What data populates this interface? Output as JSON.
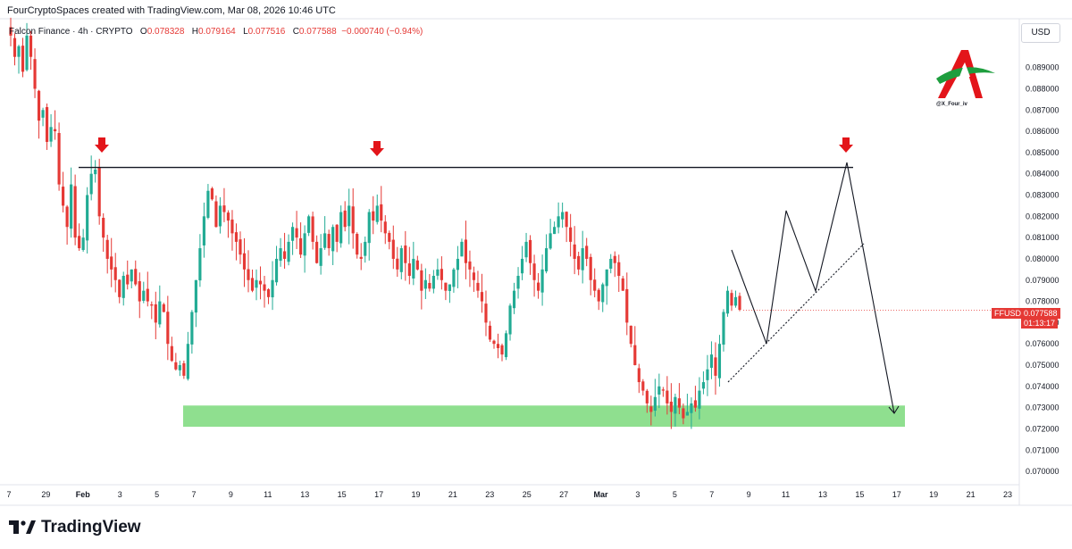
{
  "header": {
    "credit": "FourCryptoSpaces created with TradingView.com, Mar 08, 2026 10:46 UTC",
    "symbol": "Falcon Finance · 4h · CRYPTO",
    "ohlc": {
      "o_label": "O",
      "o": "0.078328",
      "h_label": "H",
      "h": "0.079164",
      "l_label": "L",
      "l": "0.077516",
      "c_label": "C",
      "c": "0.077588",
      "change": "−0.000740 (−0.94%)"
    },
    "currency": "USD"
  },
  "watermark": {
    "handle": "@X_Four_iv"
  },
  "price_label": {
    "ticker": "FFUSD",
    "price": "0.077588",
    "countdown": "01:13:17"
  },
  "footer": {
    "brand": "TradingView"
  },
  "colors": {
    "up": "#22ab94",
    "down": "#e53935",
    "zone": "#6ad46a",
    "arrow": "#e3151a",
    "label_bg": "#e53935"
  },
  "chart_data": {
    "type": "candlestick",
    "timeframe": "4h",
    "ylim": [
      0.0695,
      0.091
    ],
    "y_ticks": [
      "0.089000",
      "0.088000",
      "0.087000",
      "0.086000",
      "0.085000",
      "0.084000",
      "0.083000",
      "0.082000",
      "0.081000",
      "0.080000",
      "0.079000",
      "0.078000",
      "0.077000",
      "0.076000",
      "0.075000",
      "0.074000",
      "0.073000",
      "0.072000",
      "0.071000",
      "0.070000"
    ],
    "x_ticks": [
      "7",
      "29",
      "Feb",
      "3",
      "5",
      "7",
      "9",
      "11",
      "13",
      "15",
      "17",
      "19",
      "21",
      "23",
      "25",
      "27",
      "Mar",
      "3",
      "5",
      "7",
      "9",
      "11",
      "13",
      "15",
      "17",
      "19",
      "21",
      "23"
    ],
    "close_path": [
      0.0905,
      0.0895,
      0.09,
      0.0888,
      0.0905,
      0.0895,
      0.088,
      0.0865,
      0.087,
      0.0855,
      0.0862,
      0.086,
      0.0835,
      0.0825,
      0.0815,
      0.0835,
      0.081,
      0.0805,
      0.081,
      0.083,
      0.084,
      0.0842,
      0.082,
      0.081,
      0.08,
      0.0795,
      0.079,
      0.0782,
      0.0792,
      0.0788,
      0.0795,
      0.0788,
      0.078,
      0.0785,
      0.078,
      0.0778,
      0.077,
      0.078,
      0.0775,
      0.076,
      0.0752,
      0.0748,
      0.075,
      0.0745,
      0.076,
      0.0775,
      0.079,
      0.0805,
      0.082,
      0.0832,
      0.0828,
      0.0815,
      0.0825,
      0.0822,
      0.0818,
      0.0812,
      0.0808,
      0.0802,
      0.0795,
      0.079,
      0.0785,
      0.079,
      0.0788,
      0.0785,
      0.0782,
      0.079,
      0.08,
      0.0805,
      0.08,
      0.0808,
      0.0815,
      0.081,
      0.0802,
      0.0812,
      0.082,
      0.0808,
      0.0798,
      0.0805,
      0.0812,
      0.0805,
      0.0815,
      0.0808,
      0.0822,
      0.0815,
      0.0825,
      0.0812,
      0.0802,
      0.08,
      0.0808,
      0.0822,
      0.0818,
      0.0825,
      0.0818,
      0.0812,
      0.0808,
      0.08,
      0.0795,
      0.0805,
      0.0798,
      0.0792,
      0.08,
      0.0795,
      0.0785,
      0.079,
      0.0786,
      0.0792,
      0.0795,
      0.079,
      0.0785,
      0.0788,
      0.0795,
      0.08,
      0.0808,
      0.0798,
      0.0795,
      0.079,
      0.0785,
      0.078,
      0.077,
      0.0762,
      0.076,
      0.0758,
      0.0755,
      0.0765,
      0.0778,
      0.0785,
      0.0792,
      0.08,
      0.0808,
      0.0798,
      0.079,
      0.0785,
      0.0795,
      0.0805,
      0.0812,
      0.0815,
      0.082,
      0.0822,
      0.0815,
      0.0808,
      0.08,
      0.0795,
      0.0805,
      0.08,
      0.079,
      0.0785,
      0.078,
      0.0788,
      0.0795,
      0.08,
      0.0798,
      0.0792,
      0.0785,
      0.077,
      0.076,
      0.075,
      0.0742,
      0.0738,
      0.0732,
      0.0728,
      0.0735,
      0.074,
      0.0738,
      0.0732,
      0.0728,
      0.0735,
      0.073,
      0.0725,
      0.0728,
      0.0732,
      0.073,
      0.0738,
      0.0742,
      0.0748,
      0.0755,
      0.0745,
      0.076,
      0.0775,
      0.0785,
      0.0778,
      0.0782,
      0.0776
    ],
    "resistance_level": 0.0843,
    "support_zone": [
      0.0721,
      0.0731
    ],
    "projection_path": [
      [
        0.0842,
        0.0801
      ],
      [
        0.0858,
        0.0762
      ],
      [
        0.0878,
        0.0822
      ],
      [
        0.0912,
        0.0787
      ],
      [
        0.0945,
        0.0845
      ],
      [
        0.1,
        0.0729
      ]
    ],
    "trendline_dotted": [
      [
        0.0815,
        0.0745
      ],
      [
        0.0965,
        0.0805
      ]
    ]
  }
}
